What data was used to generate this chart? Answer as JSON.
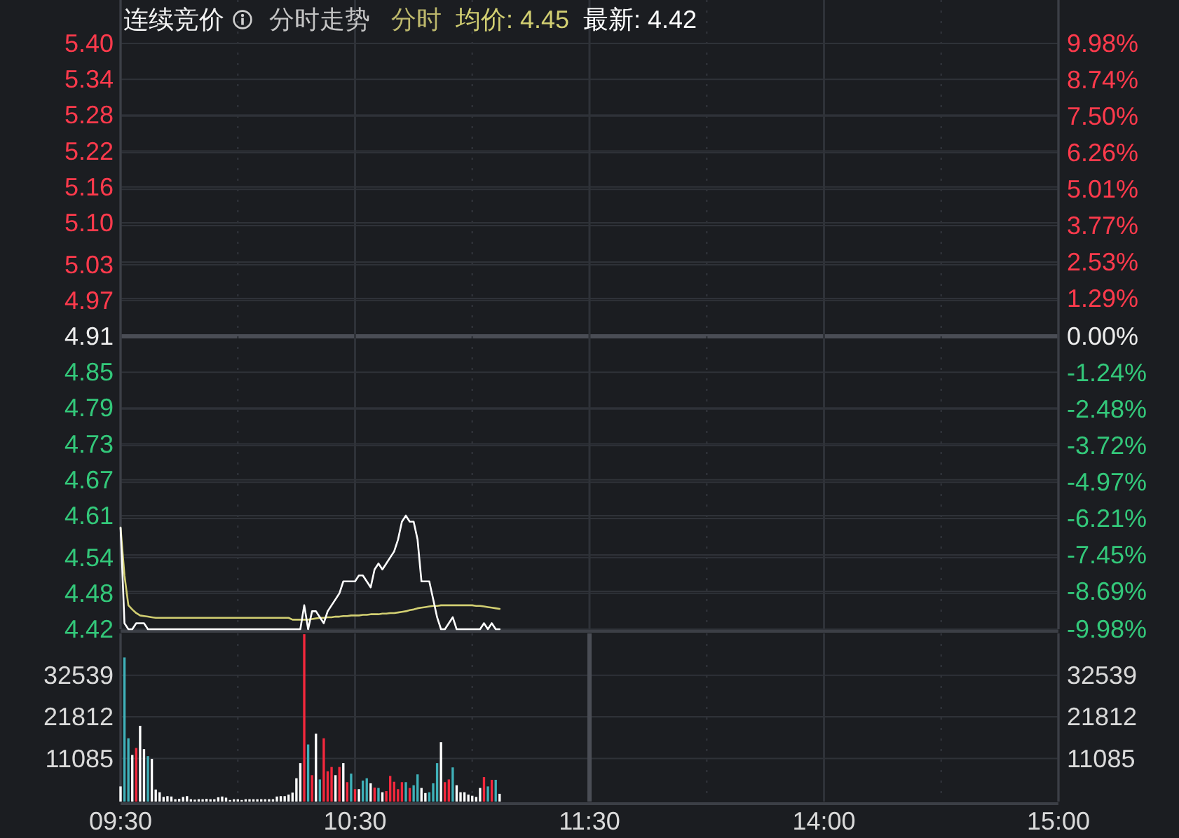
{
  "chart_data": [
    {
      "type": "line",
      "title": "连续竞价",
      "subtitle": "分时走势",
      "legend_title": "分时",
      "legend": "top left",
      "categories": [
        null,
        null,
        null,
        null,
        null,
        null,
        null,
        null,
        null,
        null,
        null,
        null,
        null,
        null,
        null,
        null,
        null,
        null,
        null,
        null,
        null,
        null,
        null,
        null,
        null,
        null,
        null,
        null,
        null,
        null,
        null,
        null,
        null,
        null,
        null,
        null,
        null,
        null,
        null,
        null,
        null,
        null,
        null,
        null,
        null,
        null,
        null,
        null,
        null,
        null,
        null,
        null,
        null,
        null,
        null,
        null,
        null,
        null,
        null,
        null,
        null,
        null,
        null,
        null,
        null,
        null,
        null,
        null,
        null,
        null,
        null,
        null,
        null,
        null,
        null,
        null,
        null,
        null,
        null,
        null,
        null,
        null,
        null,
        null,
        null,
        null,
        null,
        null,
        null,
        null,
        null,
        null,
        null,
        null,
        null,
        null,
        null,
        null,
        null,
        null,
        null,
        null,
        null,
        null,
        null,
        null,
        null,
        null,
        null,
        null,
        null,
        null,
        null,
        null,
        null,
        null,
        null,
        null,
        null,
        null,
        null,
        null,
        null,
        null,
        null,
        null,
        null,
        null,
        null,
        null,
        null,
        null,
        null,
        null,
        null,
        null,
        null,
        null,
        null,
        null,
        null,
        null,
        null,
        null,
        null,
        null,
        null,
        null,
        null,
        null,
        null,
        null,
        null,
        null,
        null,
        null,
        null,
        null,
        null,
        null,
        null,
        null,
        null,
        null,
        null,
        null,
        null,
        null,
        null,
        null,
        null,
        null,
        null,
        null,
        null,
        null,
        null,
        null,
        null,
        null,
        null,
        null,
        null,
        null,
        null,
        null,
        null,
        null,
        null,
        null,
        null,
        null,
        null,
        null,
        null,
        null,
        null,
        null,
        null,
        null,
        null,
        null,
        null,
        null,
        null,
        null,
        null,
        null,
        null,
        null,
        null,
        null,
        null,
        null,
        null,
        null,
        null,
        null,
        null,
        null,
        null,
        null,
        null,
        null,
        null,
        null,
        null,
        null,
        null,
        null,
        null,
        null,
        null,
        null,
        null,
        null,
        null,
        null,
        null,
        null,
        null
      ],
      "series": [
        {
          "name": "均价: 4.45",
          "color": "#d2cf72",
          "values": [
            4.59,
            4.51,
            4.46,
            4.453,
            4.447,
            4.443,
            4.442,
            4.441,
            4.44,
            4.439,
            4.439,
            4.439,
            4.439,
            4.439,
            4.439,
            4.439,
            4.439,
            4.439,
            4.439,
            4.439,
            4.439,
            4.439,
            4.439,
            4.439,
            4.439,
            4.439,
            4.439,
            4.439,
            4.439,
            4.439,
            4.439,
            4.439,
            4.439,
            4.439,
            4.439,
            4.439,
            4.439,
            4.439,
            4.439,
            4.439,
            4.439,
            4.439,
            4.439,
            4.439,
            4.436,
            4.436,
            4.436,
            4.436,
            4.436,
            4.437,
            4.438,
            4.439,
            4.439,
            4.44,
            4.44,
            4.441,
            4.441,
            4.442,
            4.442,
            4.443,
            4.443,
            4.443,
            4.444,
            4.444,
            4.445,
            4.445,
            4.445,
            4.446,
            4.446,
            4.447,
            4.447,
            4.448,
            4.449,
            4.45,
            4.452,
            4.453,
            4.455,
            4.456,
            4.457,
            4.458,
            4.459,
            4.459,
            4.46,
            4.46,
            4.46,
            4.46,
            4.46,
            4.46,
            4.46,
            4.46,
            4.46,
            4.459,
            4.459,
            4.458,
            4.457,
            4.456,
            4.455,
            4.454,
            null,
            null,
            null,
            null,
            null,
            null,
            null,
            null,
            null,
            null,
            null,
            null,
            null,
            null,
            null,
            null,
            null,
            null,
            null,
            null,
            null,
            null,
            null,
            null,
            null,
            null,
            null,
            null,
            null,
            null,
            null,
            null,
            null,
            null,
            null,
            null,
            null,
            null,
            null,
            null,
            null,
            null,
            null,
            null,
            null,
            null,
            null,
            null,
            null,
            null,
            null,
            null,
            null,
            null,
            null,
            null,
            null,
            null,
            null,
            null,
            null,
            null,
            null,
            null,
            null,
            null,
            null,
            null,
            null,
            null,
            null,
            null,
            null,
            null,
            null,
            null,
            null,
            null,
            null,
            null,
            null,
            null,
            null,
            null,
            null,
            null,
            null,
            null,
            null,
            null,
            null,
            null,
            null,
            null,
            null,
            null,
            null,
            null,
            null,
            null,
            null,
            null,
            null,
            null,
            null,
            null,
            null,
            null,
            null,
            null,
            null,
            null,
            null,
            null,
            null,
            null,
            null,
            null,
            null,
            null,
            null,
            null,
            null,
            null,
            null,
            null,
            null,
            null,
            null,
            null,
            null,
            null,
            null,
            null,
            null,
            null,
            null,
            null,
            null,
            null,
            null,
            null,
            null
          ]
        },
        {
          "name": "最新: 4.42",
          "color": "#ffffff",
          "values": [
            4.59,
            4.43,
            4.42,
            4.42,
            4.43,
            4.43,
            4.43,
            4.42,
            4.42,
            4.42,
            4.42,
            4.42,
            4.42,
            4.42,
            4.42,
            4.42,
            4.42,
            4.42,
            4.42,
            4.42,
            4.42,
            4.42,
            4.42,
            4.42,
            4.42,
            4.42,
            4.42,
            4.42,
            4.42,
            4.42,
            4.42,
            4.42,
            4.42,
            4.42,
            4.42,
            4.42,
            4.42,
            4.42,
            4.42,
            4.42,
            4.42,
            4.42,
            4.42,
            4.42,
            4.42,
            4.42,
            4.42,
            4.46,
            4.42,
            4.45,
            4.45,
            4.44,
            4.43,
            4.45,
            4.46,
            4.47,
            4.48,
            4.5,
            4.5,
            4.5,
            4.5,
            4.51,
            4.51,
            4.5,
            4.49,
            4.52,
            4.53,
            4.52,
            4.53,
            4.54,
            4.55,
            4.57,
            4.6,
            4.61,
            4.6,
            4.6,
            4.57,
            4.5,
            4.5,
            4.5,
            4.47,
            4.44,
            4.42,
            4.42,
            4.43,
            4.44,
            4.42,
            4.42,
            4.42,
            4.42,
            4.42,
            4.42,
            4.42,
            4.43,
            4.42,
            4.43,
            4.42,
            4.42,
            null,
            null,
            null,
            null,
            null,
            null,
            null,
            null,
            null,
            null,
            null,
            null,
            null,
            null,
            null,
            null,
            null,
            null,
            null,
            null,
            null,
            null,
            null,
            null,
            null,
            null,
            null,
            null,
            null,
            null,
            null,
            null,
            null,
            null,
            null,
            null,
            null,
            null,
            null,
            null,
            null,
            null,
            null,
            null,
            null,
            null,
            null,
            null,
            null,
            null,
            null,
            null,
            null,
            null,
            null,
            null,
            null,
            null,
            null,
            null,
            null,
            null,
            null,
            null,
            null,
            null,
            null,
            null,
            null,
            null,
            null,
            null,
            null,
            null,
            null,
            null,
            null,
            null,
            null,
            null,
            null,
            null,
            null,
            null,
            null,
            null,
            null,
            null,
            null,
            null,
            null,
            null,
            null,
            null,
            null,
            null,
            null,
            null,
            null,
            null,
            null,
            null,
            null,
            null,
            null,
            null,
            null,
            null,
            null,
            null,
            null,
            null,
            null,
            null,
            null,
            null,
            null,
            null,
            null,
            null,
            null,
            null,
            null,
            null,
            null,
            null,
            null,
            null,
            null,
            null,
            null,
            null,
            null,
            null,
            null,
            null,
            null,
            null,
            null,
            null,
            null,
            null,
            null
          ]
        }
      ],
      "ylim": [
        4.42,
        5.4
      ],
      "yticks": [
        {
          "value": 5.4,
          "label": "5.40"
        },
        5.34,
        5.28,
        5.22,
        5.16,
        {
          "value": 5.1,
          "label": "5.10"
        },
        5.03,
        4.97,
        4.91,
        4.85,
        4.79,
        4.73,
        4.67,
        4.61,
        4.54,
        4.48,
        4.42
      ],
      "y2lim": [
        -9.98,
        9.98
      ],
      "y2ticks": [
        {
          "value": 9.98,
          "label": "9.98%"
        },
        {
          "value": 8.74,
          "label": "8.74%"
        },
        {
          "value": 7.5,
          "label": "7.50%"
        },
        {
          "value": 6.26,
          "label": "6.26%"
        },
        {
          "value": 5.01,
          "label": "5.01%"
        },
        {
          "value": 3.77,
          "label": "3.77%"
        },
        {
          "value": 2.53,
          "label": "2.53%"
        },
        {
          "value": 1.29,
          "label": "1.29%"
        },
        {
          "value": 0,
          "label": "0.00%"
        },
        {
          "value": -1.24,
          "label": "-1.24%"
        },
        {
          "value": -2.48,
          "label": "-2.48%"
        },
        {
          "value": -3.72,
          "label": "-3.72%"
        },
        {
          "value": -4.97,
          "label": "-4.97%"
        },
        {
          "value": -6.21,
          "label": "-6.21%"
        },
        {
          "value": -7.45,
          "label": "-7.45%"
        },
        {
          "value": -8.69,
          "label": "-8.69%"
        },
        {
          "value": -9.98,
          "label": "-9.98%"
        }
      ],
      "grid": true,
      "tick_labels": "y"
    },
    {
      "type": "bar",
      "categories": [
        "09:30",
        null,
        null,
        null,
        null,
        null,
        null,
        null,
        null,
        null,
        null,
        null,
        null,
        null,
        null,
        null,
        null,
        null,
        null,
        null,
        null,
        null,
        null,
        null,
        null,
        null,
        null,
        null,
        null,
        null,
        null,
        null,
        null,
        null,
        null,
        null,
        null,
        null,
        null,
        null,
        null,
        null,
        null,
        null,
        null,
        null,
        null,
        null,
        null,
        null,
        null,
        null,
        null,
        null,
        null,
        null,
        null,
        null,
        null,
        null,
        "10:30",
        null,
        null,
        null,
        null,
        null,
        null,
        null,
        null,
        null,
        null,
        null,
        null,
        null,
        null,
        null,
        null,
        null,
        null,
        null,
        null,
        null,
        null,
        null,
        null,
        null,
        null,
        null,
        null,
        null,
        null,
        null,
        null,
        null,
        null,
        null,
        null,
        null,
        null,
        null,
        null,
        null,
        null,
        null,
        null,
        null,
        null,
        null,
        null,
        null,
        null,
        null,
        null,
        null,
        null,
        null,
        null,
        null,
        null,
        null,
        "11:30",
        null,
        null,
        null,
        null,
        null,
        null,
        null,
        null,
        null,
        null,
        null,
        null,
        null,
        null,
        null,
        null,
        null,
        null,
        null,
        null,
        null,
        null,
        null,
        null,
        null,
        null,
        null,
        null,
        null,
        null,
        null,
        null,
        null,
        null,
        null,
        null,
        null,
        null,
        null,
        null,
        null,
        null,
        null,
        null,
        null,
        null,
        null,
        null,
        null,
        null,
        null,
        null,
        null,
        null,
        null,
        null,
        null,
        null,
        null,
        "14:00",
        null,
        null,
        null,
        null,
        null,
        null,
        null,
        null,
        null,
        null,
        null,
        null,
        null,
        null,
        null,
        null,
        null,
        null,
        null,
        null,
        null,
        null,
        null,
        null,
        null,
        null,
        null,
        null,
        null,
        null,
        null,
        null,
        null,
        null,
        null,
        null,
        null,
        null,
        null,
        null,
        null,
        null,
        null,
        null,
        null,
        null,
        null,
        null,
        null,
        null,
        null,
        null,
        null,
        null,
        null,
        null,
        null,
        null,
        null,
        "15:00"
      ],
      "values": [
        3900,
        37100,
        16300,
        12000,
        13800,
        19500,
        13500,
        11700,
        11000,
        3100,
        2400,
        1200,
        1400,
        1300,
        600,
        700,
        1200,
        1400,
        600,
        500,
        600,
        600,
        700,
        600,
        600,
        1100,
        1300,
        1000,
        400,
        600,
        600,
        400,
        600,
        600,
        600,
        600,
        600,
        600,
        600,
        600,
        1300,
        1400,
        1400,
        1800,
        2300,
        6000,
        9900,
        43100,
        14700,
        6800,
        17500,
        5700,
        16300,
        7800,
        8900,
        6800,
        8900,
        9900,
        5000,
        7200,
        3200,
        3200,
        5400,
        6000,
        4700,
        3600,
        3500,
        2400,
        2700,
        6600,
        5100,
        3200,
        5000,
        5000,
        3500,
        4200,
        7000,
        3500,
        2200,
        2400,
        4700,
        9900,
        15300,
        5000,
        5700,
        8800,
        4200,
        2400,
        2400,
        1800,
        1500,
        1200,
        3500,
        6300,
        3900,
        5600,
        5600,
        2000,
        null,
        null,
        null,
        null,
        null,
        null,
        null,
        null,
        null,
        null,
        null,
        null,
        null,
        null,
        null,
        null,
        null,
        null,
        null,
        null,
        null,
        null,
        null,
        null,
        null,
        null,
        null,
        null,
        null,
        null,
        null,
        null,
        null,
        null,
        null,
        null,
        null,
        null,
        null,
        null,
        null,
        null,
        null,
        null,
        null,
        null,
        null,
        null,
        null,
        null,
        null,
        null,
        null,
        null,
        null,
        null,
        null,
        null,
        null,
        null,
        null,
        null,
        null,
        null,
        null,
        null,
        null,
        null,
        null,
        null,
        null,
        null,
        null,
        null,
        null,
        null,
        null,
        null,
        null,
        null,
        null,
        null,
        null,
        null,
        null,
        null,
        null,
        null,
        null,
        null,
        null,
        null,
        null,
        null,
        null,
        null,
        null,
        null,
        null,
        null,
        null,
        null,
        null,
        null,
        null,
        null,
        null,
        null,
        null,
        null,
        null,
        null,
        null,
        null,
        null,
        null,
        null,
        null,
        null,
        null,
        null,
        null,
        null,
        null,
        null,
        null,
        null,
        null,
        null,
        null,
        null,
        null,
        null,
        null,
        null,
        null,
        null,
        null,
        null,
        null,
        null,
        null,
        null
      ],
      "colors": [
        "#ffffff",
        "#3fb1b9",
        "#3fb1b9",
        "#ffffff",
        "#f5283d",
        "#ffffff",
        "#ffffff",
        "#3fb1b9",
        "#ffffff",
        "#ffffff",
        "#ffffff",
        "#ffffff",
        "#ffffff",
        "#ffffff",
        "#ffffff",
        "#ffffff",
        "#ffffff",
        "#ffffff",
        "#ffffff",
        "#ffffff",
        "#ffffff",
        "#ffffff",
        "#ffffff",
        "#ffffff",
        "#ffffff",
        "#ffffff",
        "#ffffff",
        "#ffffff",
        "#ffffff",
        "#ffffff",
        "#ffffff",
        "#ffffff",
        "#ffffff",
        "#ffffff",
        "#ffffff",
        "#ffffff",
        "#ffffff",
        "#ffffff",
        "#ffffff",
        "#ffffff",
        "#ffffff",
        "#ffffff",
        "#ffffff",
        "#ffffff",
        "#ffffff",
        "#ffffff",
        "#ffffff",
        "#f5283d",
        "#3fb1b9",
        "#f5283d",
        "#ffffff",
        "#3fb1b9",
        "#f5283d",
        "#f5283d",
        "#f5283d",
        "#ffffff",
        "#f5283d",
        "#ffffff",
        "#f5283d",
        "#3fb1b9",
        "#f5283d",
        "#ffffff",
        "#3fb1b9",
        "#3fb1b9",
        "#ffffff",
        "#f5283d",
        "#3fb1b9",
        "#ffffff",
        "#f5283d",
        "#f5283d",
        "#f5283d",
        "#f5283d",
        "#f5283d",
        "#3fb1b9",
        "#f5283d",
        "#3fb1b9",
        "#3fb1b9",
        "#ffffff",
        "#ffffff",
        "#3fb1b9",
        "#3fb1b9",
        "#3fb1b9",
        "#ffffff",
        "#f5283d",
        "#f5283d",
        "#3fb1b9",
        "#ffffff",
        "#ffffff",
        "#ffffff",
        "#ffffff",
        "#ffffff",
        "#ffffff",
        "#ffffff",
        "#f5283d",
        "#3fb1b9",
        "#f5283d",
        "#3fb1b9",
        "#ffffff",
        null,
        null,
        null,
        null,
        null,
        null,
        null,
        null,
        null,
        null,
        null,
        null,
        null,
        null,
        null,
        null,
        null,
        null,
        null,
        null,
        null,
        null,
        null,
        null,
        null,
        null,
        null,
        null,
        null,
        null,
        null,
        null,
        null,
        null,
        null,
        null,
        null,
        null,
        null,
        null,
        null,
        null,
        null,
        null,
        null,
        null,
        null,
        null,
        null,
        null,
        null,
        null,
        null,
        null,
        null,
        null,
        null,
        null,
        null,
        null,
        null,
        null,
        null,
        null,
        null,
        null,
        null,
        null,
        null,
        null,
        null,
        null,
        null,
        null,
        null,
        null,
        null,
        null,
        null,
        null,
        null,
        null,
        null,
        null,
        null,
        null,
        null,
        null,
        null,
        null,
        null,
        null,
        null,
        null,
        null,
        null,
        null,
        null,
        null,
        null,
        null,
        null,
        null,
        null,
        null,
        null,
        null,
        null,
        null,
        null,
        null,
        null,
        null,
        null,
        null,
        null,
        null,
        null,
        null,
        null,
        null,
        null,
        null,
        null,
        null,
        null,
        null,
        null,
        null,
        null,
        null,
        null,
        null,
        null,
        null,
        null,
        null,
        null,
        null,
        null,
        null,
        null,
        null
      ],
      "ylim": [
        0,
        43300
      ],
      "yticks": [
        11085,
        21812,
        32539
      ],
      "y2lim": [
        0,
        43300
      ],
      "y2ticks": [
        11085,
        21812,
        32539
      ],
      "grid": true,
      "ref_lines": [
        {
          "axis": "x",
          "value": "11:30"
        }
      ]
    }
  ]
}
